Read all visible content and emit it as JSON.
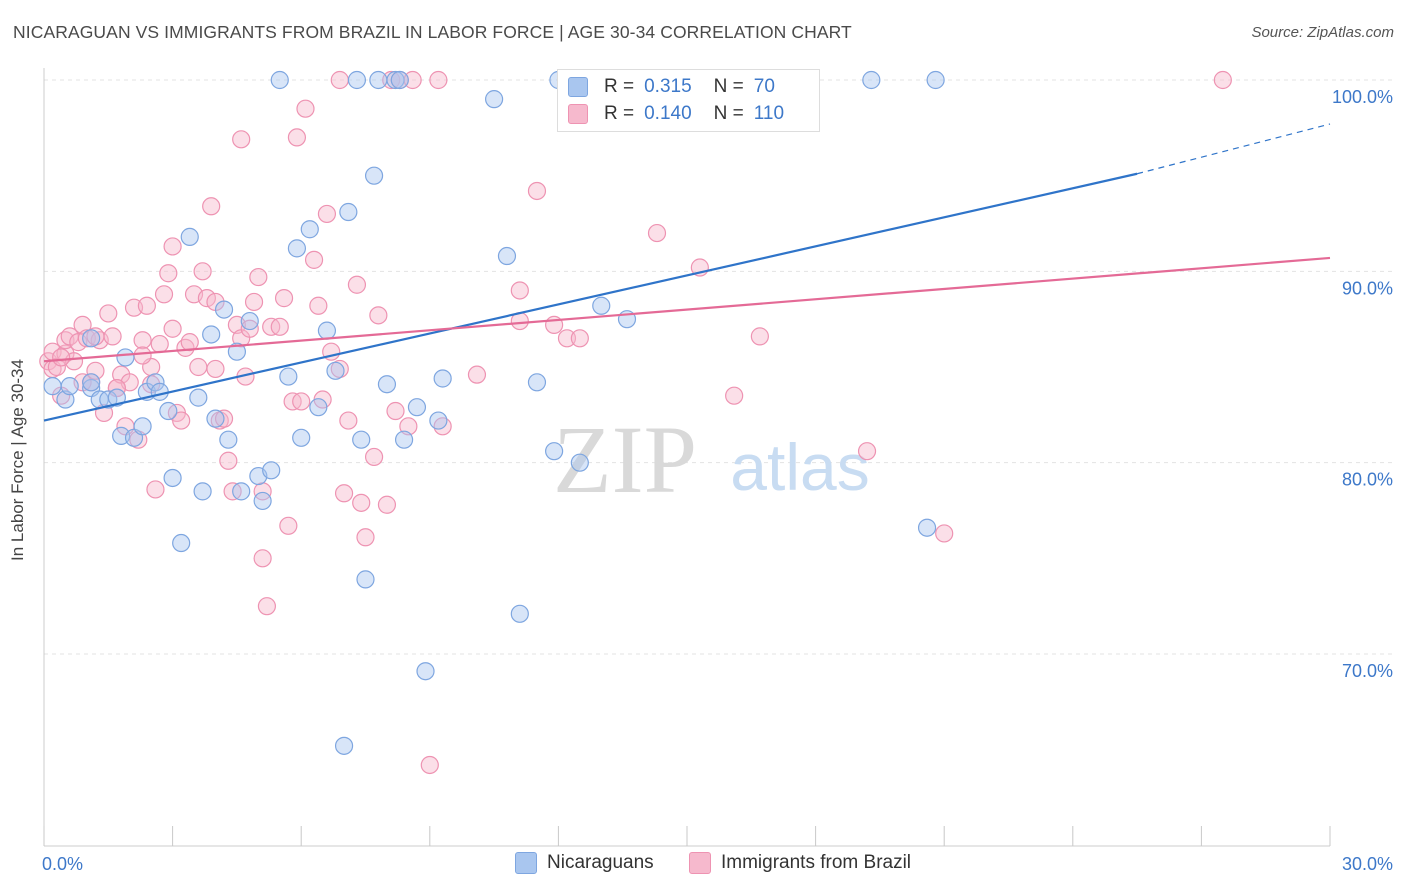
{
  "title": "NICARAGUAN VS IMMIGRANTS FROM BRAZIL IN LABOR FORCE | AGE 30-34 CORRELATION CHART",
  "source": "Source: ZipAtlas.com",
  "watermark": {
    "zip": "ZIP",
    "atlas": "atlas"
  },
  "colors": {
    "blue_fill": "#a9c6ef",
    "blue_stroke": "#7ea6e0",
    "blue_line": "#2f74c9",
    "pink_fill": "#f6b9cd",
    "pink_stroke": "#ee93b2",
    "pink_line": "#e46a96",
    "axis_label": "#3d78c9",
    "grid": "#e3e3e3"
  },
  "legend": {
    "rows": [
      {
        "r_label": "R =",
        "r_value": "0.315",
        "n_label": "N =",
        "n_value": "70"
      },
      {
        "r_label": "R =",
        "r_value": "0.140",
        "n_label": "N =",
        "n_value": "110"
      }
    ]
  },
  "bottom_legend": [
    "Nicaraguans",
    "Immigrants from Brazil"
  ],
  "chart_data": {
    "type": "scatter",
    "title": "NICARAGUAN VS IMMIGRANTS FROM BRAZIL IN LABOR FORCE | AGE 30-34 CORRELATION CHART",
    "xlabel": "",
    "ylabel": "In Labor Force | Age 30-34",
    "xlim": [
      0,
      30
    ],
    "ylim": [
      60.5,
      101.5
    ],
    "x_tick_labels": [
      "0.0%",
      "30.0%"
    ],
    "y_ticks": [
      70,
      80,
      90,
      100
    ],
    "y_tick_labels": [
      "70.0%",
      "80.0%",
      "90.0%",
      "100.0%"
    ],
    "grid": true,
    "series": [
      {
        "name": "Nicaraguans",
        "r": 0.315,
        "n": 70,
        "trend": {
          "x0": 0,
          "y0": 82.2,
          "x1": 25.5,
          "y1": 95.1,
          "dash_to_x": 30,
          "dash_to_y": 97.7
        },
        "points": [
          [
            0.2,
            84.0
          ],
          [
            0.5,
            83.3
          ],
          [
            0.6,
            84.0
          ],
          [
            1.1,
            83.9
          ],
          [
            1.1,
            86.5
          ],
          [
            1.1,
            84.2
          ],
          [
            1.3,
            83.3
          ],
          [
            1.5,
            83.3
          ],
          [
            1.7,
            83.4
          ],
          [
            1.8,
            81.4
          ],
          [
            1.9,
            85.5
          ],
          [
            2.1,
            81.3
          ],
          [
            2.3,
            81.9
          ],
          [
            2.4,
            83.7
          ],
          [
            2.6,
            84.2
          ],
          [
            2.7,
            83.7
          ],
          [
            2.9,
            82.7
          ],
          [
            3.0,
            79.2
          ],
          [
            3.2,
            75.8
          ],
          [
            3.4,
            91.8
          ],
          [
            3.6,
            83.4
          ],
          [
            3.7,
            78.5
          ],
          [
            3.9,
            86.7
          ],
          [
            4.0,
            82.3
          ],
          [
            4.2,
            88.0
          ],
          [
            4.3,
            81.2
          ],
          [
            4.5,
            85.8
          ],
          [
            4.6,
            78.5
          ],
          [
            4.8,
            87.4
          ],
          [
            5.0,
            79.3
          ],
          [
            5.1,
            78.0
          ],
          [
            5.3,
            79.6
          ],
          [
            5.7,
            84.5
          ],
          [
            5.5,
            100.0
          ],
          [
            5.9,
            91.2
          ],
          [
            6.0,
            81.3
          ],
          [
            6.2,
            92.2
          ],
          [
            6.4,
            82.9
          ],
          [
            6.6,
            86.9
          ],
          [
            6.8,
            84.8
          ],
          [
            7.0,
            65.2
          ],
          [
            7.1,
            93.1
          ],
          [
            7.3,
            100.0
          ],
          [
            7.4,
            81.2
          ],
          [
            7.5,
            73.9
          ],
          [
            7.7,
            95.0
          ],
          [
            7.8,
            100.0
          ],
          [
            8.0,
            84.1
          ],
          [
            8.2,
            100.0
          ],
          [
            8.3,
            100.0
          ],
          [
            8.4,
            81.2
          ],
          [
            8.7,
            82.9
          ],
          [
            8.9,
            69.1
          ],
          [
            9.2,
            82.2
          ],
          [
            9.3,
            84.4
          ],
          [
            10.5,
            99.0
          ],
          [
            10.8,
            90.8
          ],
          [
            11.1,
            72.1
          ],
          [
            11.5,
            84.2
          ],
          [
            11.9,
            80.6
          ],
          [
            12.0,
            100.0
          ],
          [
            12.5,
            80.0
          ],
          [
            12.9,
            97.8
          ],
          [
            13.0,
            88.2
          ],
          [
            13.6,
            87.5
          ],
          [
            14.2,
            100.0
          ],
          [
            19.3,
            100.0
          ],
          [
            20.8,
            100.0
          ],
          [
            20.6,
            76.6
          ],
          [
            16.8,
            100.0
          ]
        ]
      },
      {
        "name": "Immigrants from Brazil",
        "r": 0.14,
        "n": 110,
        "trend": {
          "x0": 0,
          "y0": 85.3,
          "x1": 30,
          "y1": 90.7
        },
        "points": [
          [
            0.1,
            85.3
          ],
          [
            0.2,
            84.9
          ],
          [
            0.2,
            85.8
          ],
          [
            0.3,
            85.0
          ],
          [
            0.4,
            83.5
          ],
          [
            0.5,
            85.7
          ],
          [
            0.5,
            86.4
          ],
          [
            0.6,
            86.6
          ],
          [
            0.7,
            85.3
          ],
          [
            0.8,
            86.3
          ],
          [
            0.9,
            87.2
          ],
          [
            1.0,
            86.5
          ],
          [
            1.1,
            84.2
          ],
          [
            1.2,
            84.8
          ],
          [
            1.3,
            86.4
          ],
          [
            1.4,
            82.6
          ],
          [
            1.5,
            87.8
          ],
          [
            1.6,
            86.6
          ],
          [
            1.7,
            83.9
          ],
          [
            1.8,
            84.6
          ],
          [
            1.9,
            81.9
          ],
          [
            2.0,
            84.2
          ],
          [
            2.1,
            88.1
          ],
          [
            2.2,
            81.2
          ],
          [
            2.3,
            86.4
          ],
          [
            2.4,
            88.2
          ],
          [
            2.5,
            85.0
          ],
          [
            2.5,
            84.1
          ],
          [
            2.6,
            78.6
          ],
          [
            2.7,
            86.2
          ],
          [
            2.8,
            88.8
          ],
          [
            2.9,
            89.9
          ],
          [
            3.0,
            91.3
          ],
          [
            3.0,
            87.0
          ],
          [
            3.1,
            82.6
          ],
          [
            3.2,
            82.2
          ],
          [
            3.3,
            86.0
          ],
          [
            3.4,
            86.3
          ],
          [
            3.5,
            88.8
          ],
          [
            3.6,
            85.0
          ],
          [
            3.7,
            90.0
          ],
          [
            3.8,
            88.6
          ],
          [
            3.9,
            93.4
          ],
          [
            4.0,
            88.4
          ],
          [
            4.0,
            84.9
          ],
          [
            4.1,
            82.2
          ],
          [
            4.2,
            82.3
          ],
          [
            4.3,
            80.1
          ],
          [
            4.4,
            78.5
          ],
          [
            4.5,
            87.2
          ],
          [
            4.6,
            86.5
          ],
          [
            4.6,
            96.9
          ],
          [
            4.7,
            84.5
          ],
          [
            4.8,
            87.0
          ],
          [
            4.9,
            88.4
          ],
          [
            5.0,
            89.7
          ],
          [
            5.1,
            78.5
          ],
          [
            5.1,
            75.0
          ],
          [
            5.2,
            72.5
          ],
          [
            5.3,
            87.1
          ],
          [
            5.5,
            87.1
          ],
          [
            5.6,
            88.6
          ],
          [
            5.7,
            76.7
          ],
          [
            5.8,
            83.2
          ],
          [
            5.9,
            97.0
          ],
          [
            6.0,
            83.2
          ],
          [
            6.1,
            98.5
          ],
          [
            6.3,
            90.6
          ],
          [
            6.4,
            88.2
          ],
          [
            6.5,
            83.3
          ],
          [
            6.6,
            93.0
          ],
          [
            6.7,
            85.8
          ],
          [
            6.9,
            100.0
          ],
          [
            7.0,
            78.4
          ],
          [
            7.1,
            82.2
          ],
          [
            7.3,
            89.3
          ],
          [
            7.4,
            77.9
          ],
          [
            7.5,
            76.1
          ],
          [
            7.7,
            80.3
          ],
          [
            7.8,
            87.7
          ],
          [
            8.0,
            77.8
          ],
          [
            8.1,
            100.0
          ],
          [
            8.3,
            100.0
          ],
          [
            8.5,
            81.9
          ],
          [
            8.6,
            100.0
          ],
          [
            9.0,
            64.2
          ],
          [
            9.2,
            100.0
          ],
          [
            9.3,
            81.9
          ],
          [
            10.1,
            84.6
          ],
          [
            11.1,
            89.0
          ],
          [
            11.1,
            87.4
          ],
          [
            11.5,
            94.2
          ],
          [
            11.9,
            87.2
          ],
          [
            12.2,
            86.5
          ],
          [
            12.5,
            86.5
          ],
          [
            13.2,
            99.0
          ],
          [
            14.3,
            92.0
          ],
          [
            15.3,
            90.2
          ],
          [
            16.1,
            83.5
          ],
          [
            16.7,
            86.6
          ],
          [
            19.2,
            80.6
          ],
          [
            21.0,
            76.3
          ],
          [
            27.5,
            100.0
          ],
          [
            1.7,
            83.9
          ],
          [
            0.9,
            84.2
          ],
          [
            2.3,
            85.6
          ],
          [
            6.9,
            84.9
          ],
          [
            8.2,
            82.7
          ],
          [
            0.4,
            85.5
          ],
          [
            1.2,
            86.6
          ]
        ]
      }
    ]
  }
}
